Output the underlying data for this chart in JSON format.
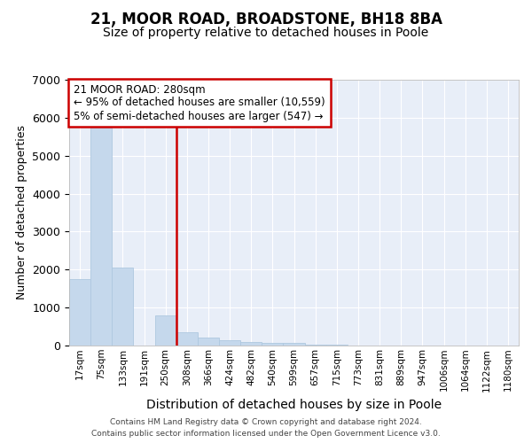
{
  "title1": "21, MOOR ROAD, BROADSTONE, BH18 8BA",
  "title2": "Size of property relative to detached houses in Poole",
  "xlabel": "Distribution of detached houses by size in Poole",
  "ylabel": "Number of detached properties",
  "bar_labels": [
    "17sqm",
    "75sqm",
    "133sqm",
    "191sqm",
    "250sqm",
    "308sqm",
    "366sqm",
    "424sqm",
    "482sqm",
    "540sqm",
    "599sqm",
    "657sqm",
    "715sqm",
    "773sqm",
    "831sqm",
    "889sqm",
    "947sqm",
    "1006sqm",
    "1064sqm",
    "1122sqm",
    "1180sqm"
  ],
  "bar_values": [
    1750,
    5750,
    2050,
    0,
    800,
    350,
    200,
    130,
    90,
    70,
    60,
    20,
    20,
    0,
    0,
    0,
    0,
    0,
    0,
    0,
    0
  ],
  "bar_color": "#c5d8ec",
  "bar_edgecolor": "#aec8e0",
  "ylim": [
    0,
    7000
  ],
  "yticks": [
    0,
    1000,
    2000,
    3000,
    4000,
    5000,
    6000,
    7000
  ],
  "vline_x": 5.0,
  "vline_color": "#cc0000",
  "annotation_line1": "21 MOOR ROAD: 280sqm",
  "annotation_line2": "← 95% of detached houses are smaller (10,559)",
  "annotation_line3": "5% of semi-detached houses are larger (547) →",
  "annotation_box_edgecolor": "#cc0000",
  "background_color": "#e8eef8",
  "grid_color": "#ffffff",
  "footer1": "Contains HM Land Registry data © Crown copyright and database right 2024.",
  "footer2": "Contains public sector information licensed under the Open Government Licence v3.0.",
  "title1_fontsize": 12,
  "title2_fontsize": 10,
  "xlabel_fontsize": 10,
  "ylabel_fontsize": 9
}
